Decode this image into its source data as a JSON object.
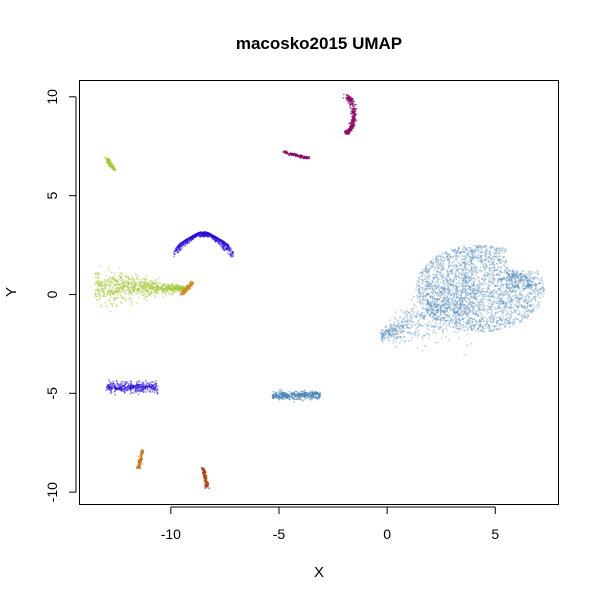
{
  "chart_data": {
    "type": "scatter",
    "title": "macosko2015 UMAP",
    "xlabel": "X",
    "ylabel": "Y",
    "xlim": [
      -14.2,
      7.9
    ],
    "ylim": [
      -10.6,
      10.8
    ],
    "xticks": [
      -10,
      -5,
      0,
      5
    ],
    "yticks": [
      -10,
      -5,
      0,
      5,
      10
    ],
    "xtick_labels": [
      "-10",
      "-5",
      "0",
      "5"
    ],
    "ytick_labels": [
      "-10",
      "-5",
      "0",
      "5",
      "10"
    ],
    "grid": false,
    "legend": "none",
    "clusters": [
      {
        "color": "#4682b4",
        "shape": "teardrop",
        "cx": 4.0,
        "cy": 0.0,
        "rx": 3.5,
        "ry": 2.2,
        "tail": [
          -0.3,
          -2.1
        ],
        "density": 1.0
      },
      {
        "color": "#4682b4",
        "shape": "blob",
        "cx": -4.2,
        "cy": -5.1,
        "rx": 1.1,
        "ry": 0.18,
        "density": 0.9
      },
      {
        "color": "#2a10d6",
        "shape": "fan",
        "cx": -8.5,
        "cy": 2.9,
        "rx": 1.1,
        "ry": 1.2,
        "density": 1.0
      },
      {
        "color": "#2a10d6",
        "shape": "blob",
        "cx": -11.8,
        "cy": -4.7,
        "rx": 1.2,
        "ry": 0.22,
        "density": 1.0
      },
      {
        "color": "#a8c83a",
        "shape": "fan-left",
        "cx": -11.3,
        "cy": 0.3,
        "rx": 2.2,
        "ry": 0.7,
        "density": 1.0
      },
      {
        "color": "#a8c83a",
        "shape": "line",
        "x0": -13.0,
        "y0": 6.9,
        "x1": -12.6,
        "y1": 6.3,
        "density": 0.6
      },
      {
        "color": "#8b0a66",
        "shape": "crescent",
        "cx": -1.9,
        "cy": 9.1,
        "rx": 0.35,
        "ry": 0.9,
        "density": 1.0
      },
      {
        "color": "#8b0a66",
        "shape": "line",
        "x0": -4.8,
        "y0": 7.2,
        "x1": -3.6,
        "y1": 6.9,
        "density": 0.8
      },
      {
        "color": "#c8781e",
        "shape": "line",
        "x0": -11.5,
        "y0": -8.8,
        "x1": -11.3,
        "y1": -7.9,
        "density": 0.7
      },
      {
        "color": "#b0441e",
        "shape": "line",
        "x0": -8.5,
        "y0": -8.8,
        "x1": -8.3,
        "y1": -9.8,
        "density": 0.7
      },
      {
        "color": "#d08a2a",
        "shape": "line",
        "x0": -9.5,
        "y0": 0.0,
        "x1": -9.0,
        "y1": 0.6,
        "density": 0.6
      }
    ]
  }
}
